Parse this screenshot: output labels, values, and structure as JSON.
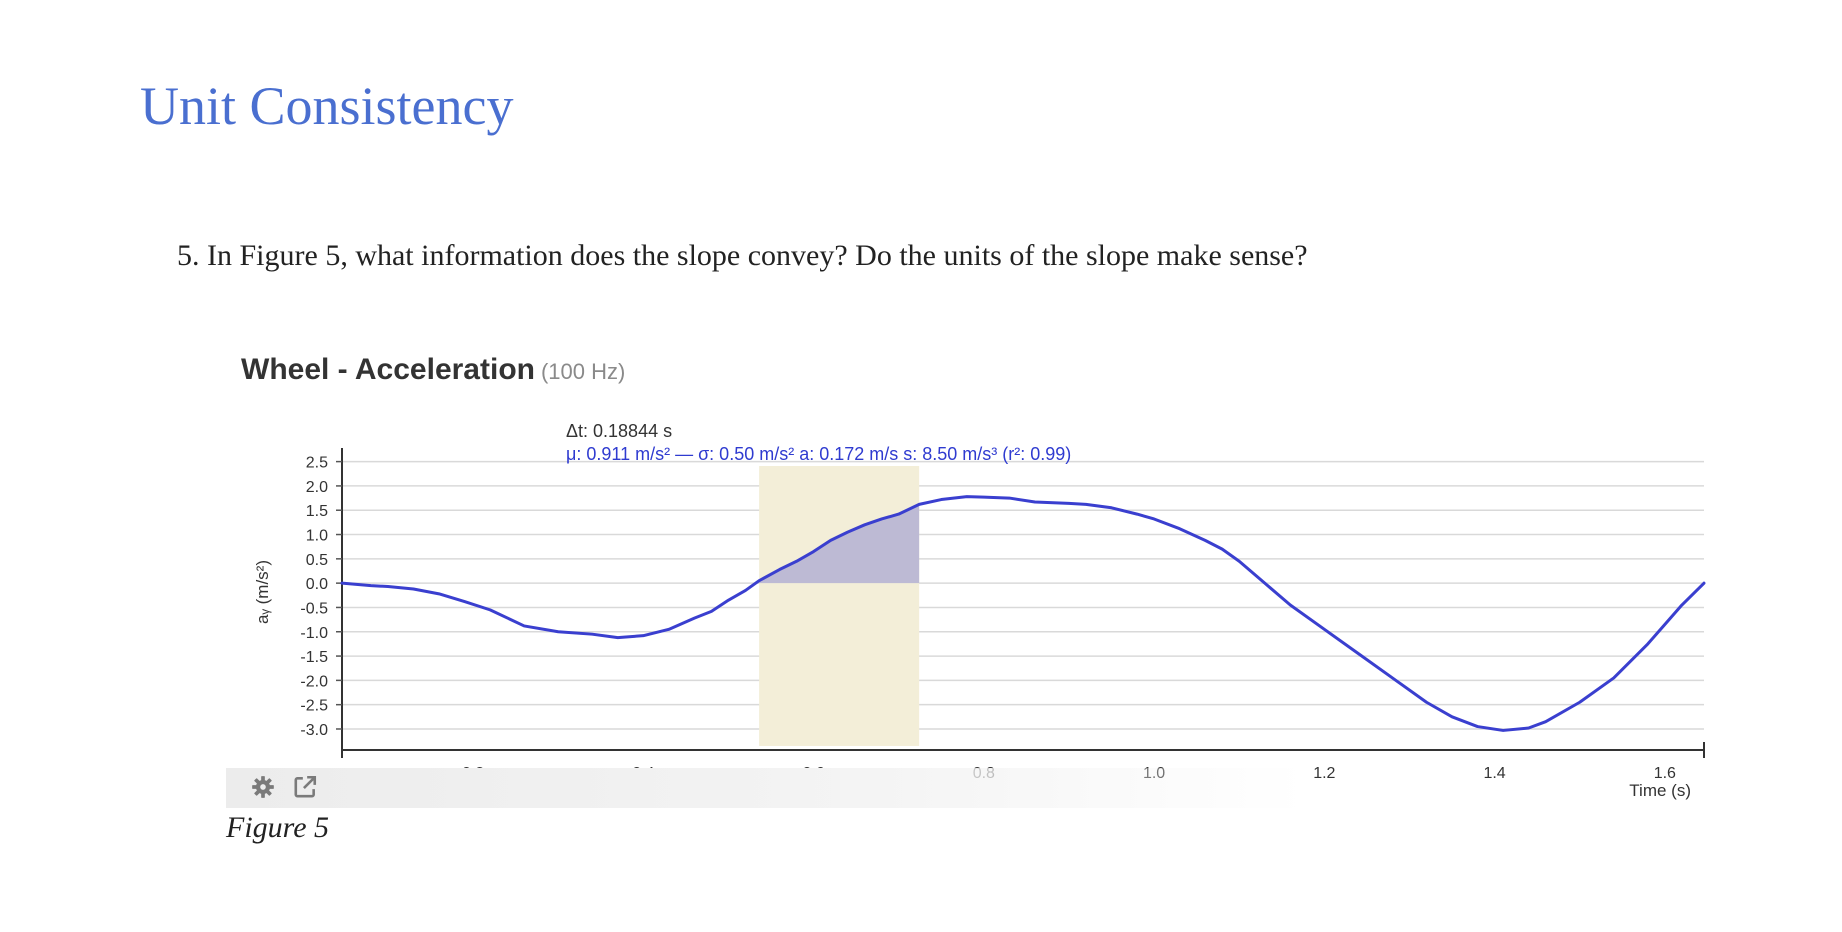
{
  "heading": "Unit Consistency",
  "question": "5. In Figure 5, what information does the slope convey? Do the units of the slope make sense?",
  "chart_title": "Wheel - Acceleration",
  "chart_subtitle": "(100 Hz)",
  "stats": {
    "dt": "Δt: 0.18844 s",
    "summary": "μ: 0.911 m/s² — σ: 0.50 m/s²   a: 0.172 m/s   s: 8.50 m/s³ (r²: 0.99)"
  },
  "toolbar": {
    "settings_icon": "gear-icon",
    "export_icon": "external-link-icon"
  },
  "caption": "Figure 5",
  "colors": {
    "heading": "#4a6fd0",
    "series": "#3a3fcf",
    "selection_fill": "#f3eed8",
    "integral_fill": "#b7b4d4"
  },
  "chart_data": {
    "type": "line",
    "title": "Wheel - Acceleration",
    "subtitle": "(100 Hz)",
    "xlabel": "Time (s)",
    "ylabel": "aᵧ (m/s²)",
    "xlim": [
      0.046,
      1.646
    ],
    "ylim": [
      -3.35,
      2.78
    ],
    "x_ticks": [
      0.2,
      0.4,
      0.6,
      0.8,
      1.0,
      1.2,
      1.4,
      1.6
    ],
    "x_tick_labels": [
      "0.2",
      "0.4",
      "0.6",
      "0.8",
      "1.0",
      "1.2",
      "1.4",
      "1.6"
    ],
    "y_ticks": [
      2.5,
      2.0,
      1.5,
      1.0,
      0.5,
      0.0,
      -0.5,
      -1.0,
      -1.5,
      -2.0,
      -2.5,
      -3.0
    ],
    "y_tick_labels": [
      "2.5",
      "2.0",
      "1.5",
      "1.0",
      "0.5",
      "0.0",
      "-0.5",
      "-1.0",
      "-1.5",
      "-2.0",
      "-2.5",
      "-3.0"
    ],
    "grid": true,
    "selection": {
      "x_start": 0.536,
      "x_end": 0.724
    },
    "series": [
      {
        "x": [
          0.046,
          0.08,
          0.1,
          0.13,
          0.16,
          0.19,
          0.22,
          0.26,
          0.3,
          0.34,
          0.37,
          0.4,
          0.43,
          0.46,
          0.48,
          0.5,
          0.52,
          0.536,
          0.56,
          0.58,
          0.6,
          0.62,
          0.64,
          0.66,
          0.68,
          0.7,
          0.724,
          0.75,
          0.78,
          0.8,
          0.83,
          0.86,
          0.9,
          0.92,
          0.95,
          0.98,
          1.0,
          1.03,
          1.06,
          1.08,
          1.1,
          1.13,
          1.16,
          1.2,
          1.24,
          1.28,
          1.32,
          1.35,
          1.38,
          1.41,
          1.44,
          1.46,
          1.5,
          1.54,
          1.58,
          1.62,
          1.646
        ],
        "y": [
          0.0,
          -0.05,
          -0.07,
          -0.12,
          -0.22,
          -0.38,
          -0.55,
          -0.88,
          -1.0,
          -1.05,
          -1.12,
          -1.08,
          -0.95,
          -0.72,
          -0.58,
          -0.35,
          -0.15,
          0.05,
          0.28,
          0.45,
          0.65,
          0.88,
          1.05,
          1.2,
          1.32,
          1.42,
          1.62,
          1.72,
          1.78,
          1.77,
          1.75,
          1.67,
          1.64,
          1.62,
          1.55,
          1.42,
          1.32,
          1.12,
          0.88,
          0.7,
          0.45,
          0.0,
          -0.45,
          -0.95,
          -1.45,
          -1.95,
          -2.45,
          -2.75,
          -2.95,
          -3.03,
          -2.98,
          -2.85,
          -2.45,
          -1.95,
          -1.25,
          -0.45,
          0.0
        ]
      }
    ]
  }
}
